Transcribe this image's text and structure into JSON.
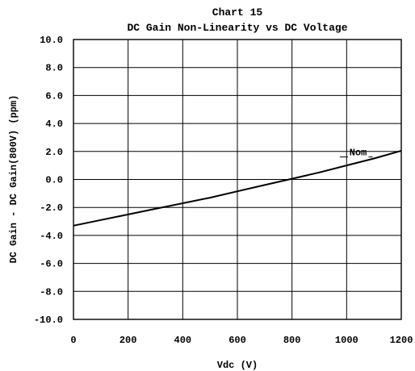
{
  "chart_data": {
    "type": "line",
    "title": "Chart 15",
    "subtitle": "DC Gain Non-Linearity vs DC Voltage",
    "xlabel": "Vdc (V)",
    "ylabel": "DC Gain - DC Gain(800V) (ppm)",
    "xlim": [
      0,
      1200
    ],
    "ylim": [
      -10,
      10
    ],
    "x_ticks": [
      "0",
      "200",
      "400",
      "600",
      "800",
      "1000",
      "1200"
    ],
    "y_ticks": [
      "10.0",
      "8.0",
      "6.0",
      "4.0",
      "2.0",
      "0.0",
      "-2.0",
      "-4.0",
      "-6.0",
      "-8.0",
      "-10.0"
    ],
    "grid": true,
    "series": [
      {
        "name": "Nom",
        "x": [
          0,
          100,
          200,
          300,
          400,
          500,
          600,
          700,
          800,
          900,
          1000,
          1100,
          1200
        ],
        "values": [
          -3.3,
          -2.9,
          -2.5,
          -2.1,
          -1.7,
          -1.3,
          -0.85,
          -0.4,
          0.05,
          0.5,
          1.0,
          1.5,
          2.05
        ]
      }
    ]
  }
}
